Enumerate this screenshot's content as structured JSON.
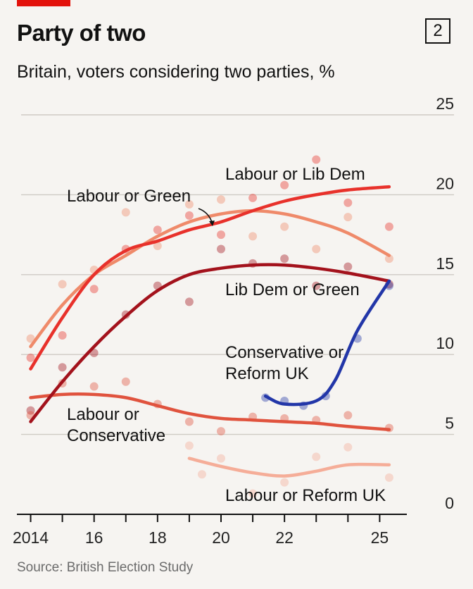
{
  "header": {
    "title": "Party of two",
    "chart_number": "2",
    "subtitle": "Britain, voters considering two parties, %",
    "source": "Source: British Election Study"
  },
  "colors": {
    "background": "#f6f4f1",
    "brand_red": "#e3120b",
    "labour_lib_dem": "#e8312b",
    "labour_green": "#ef8a6a",
    "lib_dem_green": "#a3121c",
    "conservative_reform": "#2236a8",
    "labour_conservative": "#e0533e",
    "labour_reform": "#f5ad98"
  },
  "chart_data": {
    "type": "line",
    "title": "Party of two",
    "subtitle": "Britain, voters considering two parties, %",
    "ylim": [
      0,
      25
    ],
    "xlim": [
      2013.7,
      2026.3
    ],
    "y_ticks": [
      0,
      5,
      10,
      15,
      20,
      25
    ],
    "x_tick_labels": [
      {
        "x": 2014,
        "label": "2014"
      },
      {
        "x": 2016,
        "label": "16"
      },
      {
        "x": 2018,
        "label": "18"
      },
      {
        "x": 2020,
        "label": "20"
      },
      {
        "x": 2022,
        "label": "22"
      },
      {
        "x": 2025,
        "label": "25"
      }
    ],
    "x_ticks": [
      2014,
      2015,
      2016,
      2017,
      2018,
      2019,
      2020,
      2021,
      2022,
      2023,
      2024,
      2025
    ],
    "grid": true,
    "series": [
      {
        "name": "Labour or Lib Dem",
        "color": "#e8312b",
        "trend": [
          [
            2014,
            9.1
          ],
          [
            2015,
            12.3
          ],
          [
            2016,
            15.0
          ],
          [
            2017,
            16.5
          ],
          [
            2018,
            17.1
          ],
          [
            2019,
            17.8
          ],
          [
            2020,
            18.3
          ],
          [
            2021,
            19.0
          ],
          [
            2022,
            19.6
          ],
          [
            2023,
            20.0
          ],
          [
            2024,
            20.3
          ],
          [
            2025.3,
            20.5
          ]
        ],
        "points": [
          [
            2014,
            9.8
          ],
          [
            2015,
            11.2
          ],
          [
            2016,
            14.1
          ],
          [
            2017,
            16.6
          ],
          [
            2018,
            17.8
          ],
          [
            2019,
            18.7
          ],
          [
            2020,
            17.5
          ],
          [
            2021,
            19.8
          ],
          [
            2022,
            20.6
          ],
          [
            2023,
            22.2
          ],
          [
            2024,
            19.5
          ],
          [
            2025.3,
            18.0
          ]
        ]
      },
      {
        "name": "Labour or Green",
        "color": "#ef8a6a",
        "trend": [
          [
            2014,
            10.5
          ],
          [
            2015,
            13.1
          ],
          [
            2016,
            15.0
          ],
          [
            2017,
            16.2
          ],
          [
            2018,
            17.4
          ],
          [
            2019,
            18.3
          ],
          [
            2020,
            18.8
          ],
          [
            2021,
            19.0
          ],
          [
            2022,
            18.8
          ],
          [
            2023,
            18.3
          ],
          [
            2024,
            17.6
          ],
          [
            2025.3,
            16.2
          ]
        ],
        "points": [
          [
            2014,
            11.0
          ],
          [
            2015,
            14.4
          ],
          [
            2016,
            15.3
          ],
          [
            2017,
            18.9
          ],
          [
            2018,
            16.8
          ],
          [
            2019,
            19.4
          ],
          [
            2020,
            19.7
          ],
          [
            2021,
            17.4
          ],
          [
            2022,
            18.0
          ],
          [
            2023,
            16.6
          ],
          [
            2024,
            18.6
          ],
          [
            2025.3,
            16.0
          ]
        ]
      },
      {
        "name": "Lib Dem or Green",
        "color": "#a3121c",
        "trend": [
          [
            2014,
            5.8
          ],
          [
            2015,
            8.3
          ],
          [
            2016,
            10.5
          ],
          [
            2017,
            12.4
          ],
          [
            2018,
            14.0
          ],
          [
            2019,
            15.0
          ],
          [
            2020,
            15.4
          ],
          [
            2021,
            15.6
          ],
          [
            2022,
            15.6
          ],
          [
            2023,
            15.4
          ],
          [
            2024,
            15.1
          ],
          [
            2025.3,
            14.6
          ]
        ],
        "points": [
          [
            2014,
            6.5
          ],
          [
            2015,
            9.2
          ],
          [
            2016,
            10.1
          ],
          [
            2017,
            12.5
          ],
          [
            2018,
            14.3
          ],
          [
            2019,
            13.3
          ],
          [
            2020,
            16.6
          ],
          [
            2021,
            15.7
          ],
          [
            2022,
            16.0
          ],
          [
            2023,
            14.3
          ],
          [
            2024,
            15.5
          ],
          [
            2025.3,
            14.4
          ]
        ]
      },
      {
        "name": "Conservative or Reform UK",
        "color": "#2236a8",
        "trend": [
          [
            2021.4,
            7.4
          ],
          [
            2022,
            6.9
          ],
          [
            2023,
            7.1
          ],
          [
            2023.6,
            8.4
          ],
          [
            2024.3,
            11.5
          ],
          [
            2025.3,
            14.6
          ]
        ],
        "points": [
          [
            2021.4,
            7.3
          ],
          [
            2022,
            7.1
          ],
          [
            2022.6,
            6.8
          ],
          [
            2023.3,
            7.4
          ],
          [
            2024.3,
            11.0
          ],
          [
            2025.3,
            14.3
          ]
        ]
      },
      {
        "name": "Labour or Conservative",
        "color": "#e0533e",
        "trend": [
          [
            2014,
            7.3
          ],
          [
            2015,
            7.5
          ],
          [
            2016,
            7.5
          ],
          [
            2017,
            7.3
          ],
          [
            2018,
            6.8
          ],
          [
            2019,
            6.3
          ],
          [
            2020,
            6.0
          ],
          [
            2021,
            5.9
          ],
          [
            2022,
            5.8
          ],
          [
            2023,
            5.7
          ],
          [
            2024,
            5.5
          ],
          [
            2025.3,
            5.3
          ]
        ],
        "points": [
          [
            2014,
            6.2
          ],
          [
            2015,
            8.2
          ],
          [
            2016,
            8.0
          ],
          [
            2017,
            8.3
          ],
          [
            2018,
            6.9
          ],
          [
            2019,
            5.8
          ],
          [
            2020,
            5.2
          ],
          [
            2021,
            6.1
          ],
          [
            2022,
            6.0
          ],
          [
            2023,
            5.9
          ],
          [
            2024,
            6.2
          ],
          [
            2025.3,
            5.4
          ]
        ]
      },
      {
        "name": "Labour or Reform UK",
        "color": "#f5ad98",
        "trend": [
          [
            2019,
            3.5
          ],
          [
            2020,
            3.0
          ],
          [
            2021,
            2.6
          ],
          [
            2022,
            2.4
          ],
          [
            2023,
            2.7
          ],
          [
            2024,
            3.1
          ],
          [
            2025.3,
            3.1
          ]
        ],
        "points": [
          [
            2019,
            4.3
          ],
          [
            2019.4,
            2.5
          ],
          [
            2020,
            3.5
          ],
          [
            2021,
            1.3
          ],
          [
            2022,
            2.0
          ],
          [
            2023,
            3.6
          ],
          [
            2024,
            4.2
          ],
          [
            2025.3,
            2.3
          ]
        ]
      }
    ],
    "annotations": [
      {
        "text": "Labour or Lib Dem"
      },
      {
        "text": "Labour or Green"
      },
      {
        "text": "Lib Dem or Green"
      },
      {
        "text": "Conservative or"
      },
      {
        "text": "Reform UK"
      },
      {
        "text": "Labour or"
      },
      {
        "text": "Conservative"
      },
      {
        "text": "Labour or Reform UK"
      }
    ]
  }
}
